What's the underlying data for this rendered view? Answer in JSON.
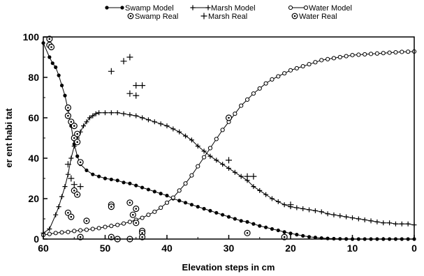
{
  "chart_data": {
    "type": "line",
    "title": "",
    "xlabel": "Elevation steps in cm",
    "ylabel": "er ent habi tat",
    "xlim": [
      60,
      0
    ],
    "ylim": [
      0,
      100
    ],
    "xticks": [
      "60",
      "50",
      "40",
      "30",
      "20",
      "10",
      "0"
    ],
    "yticks": [
      "0",
      "20",
      "40",
      "60",
      "80",
      "100"
    ],
    "grid": false,
    "legend_position": "top",
    "series": [
      {
        "name": "Swamp Model",
        "kind": "model",
        "marker": "filled-circle",
        "x": [
          60,
          59,
          58.5,
          58,
          57.5,
          57,
          56.5,
          56,
          55.5,
          55,
          54.5,
          54,
          53,
          52,
          51,
          50,
          49,
          48,
          47,
          46,
          45,
          44,
          43,
          42,
          41,
          40,
          39,
          38,
          37,
          36,
          35,
          34,
          33,
          32,
          31,
          30,
          29,
          28,
          27,
          26,
          25,
          24,
          23,
          22,
          21,
          20,
          19,
          18,
          17,
          16,
          15,
          14,
          13,
          12,
          11,
          10,
          9,
          8,
          7,
          6,
          5,
          4,
          3,
          2,
          1,
          0
        ],
        "y": [
          97,
          90,
          87,
          85,
          81,
          76,
          71,
          64,
          56,
          47,
          41,
          37,
          34,
          32,
          31,
          30,
          29.5,
          29,
          28,
          27.5,
          26.5,
          25.5,
          24.5,
          23.5,
          22.5,
          21.5,
          20,
          19,
          18,
          17,
          16,
          15,
          14,
          13,
          12,
          11,
          10,
          9,
          8.5,
          7.5,
          6.5,
          5.8,
          5,
          4.3,
          3.5,
          2.8,
          2.2,
          1.6,
          1.1,
          0.8,
          0.5,
          0.3,
          0.2,
          0.1,
          0.05,
          0,
          0,
          0,
          0,
          0,
          0,
          0,
          0,
          0,
          0,
          0
        ]
      },
      {
        "name": "Marsh Model",
        "kind": "model",
        "marker": "plus",
        "x": [
          60,
          59,
          58,
          57.5,
          57,
          56.5,
          56,
          55.5,
          55,
          54.5,
          54,
          53.5,
          53,
          52.5,
          52,
          51.5,
          51,
          50,
          49,
          48,
          47,
          46,
          45,
          44,
          43,
          42,
          41,
          40,
          39,
          38,
          37,
          36,
          35,
          34,
          33,
          32,
          31,
          30,
          29,
          28,
          27,
          26,
          25,
          24,
          23,
          22,
          21,
          20,
          19,
          18,
          17,
          16,
          15,
          14,
          13,
          12,
          11,
          10,
          9,
          8,
          7,
          6,
          5,
          4,
          3,
          2,
          1,
          0
        ],
        "y": [
          3,
          5,
          12,
          16,
          21,
          26,
          32,
          40,
          46,
          50,
          53,
          56,
          58,
          60,
          61,
          62,
          62.5,
          62.5,
          62.5,
          62.5,
          62,
          61.5,
          61,
          60,
          59,
          58,
          57,
          56,
          54.5,
          53,
          51,
          49,
          46,
          43.5,
          41,
          39,
          37,
          35,
          33,
          31,
          29,
          26,
          24,
          22,
          20,
          18.5,
          17,
          16,
          15.5,
          15,
          14.5,
          14,
          13.5,
          12.5,
          12,
          11.5,
          11,
          10.5,
          10,
          9.5,
          9,
          8.5,
          8,
          8,
          7.5,
          7.5,
          7.5,
          7
        ]
      },
      {
        "name": "Water Model",
        "kind": "model",
        "marker": "open-circle",
        "x": [
          60,
          59,
          58,
          57,
          56,
          55,
          54,
          53,
          52,
          51,
          50,
          49,
          48,
          47,
          46,
          45,
          44,
          43,
          42,
          41,
          40,
          39,
          38,
          37,
          36,
          35,
          34,
          33,
          32,
          31,
          30,
          29,
          28,
          27,
          26,
          25,
          24,
          23,
          22,
          21,
          20,
          19,
          18,
          17,
          16,
          15,
          14,
          13,
          12,
          11,
          10,
          9,
          8,
          7,
          6,
          5,
          4,
          3,
          2,
          1,
          0
        ],
        "y": [
          2,
          2.5,
          3,
          3.3,
          3.5,
          4,
          4.3,
          4.6,
          5,
          5.4,
          6,
          6.5,
          7,
          7.7,
          8.5,
          9.5,
          10.5,
          12,
          13.5,
          15.5,
          18,
          20.5,
          24,
          27.5,
          31.5,
          36,
          40.5,
          45,
          49.5,
          54,
          58,
          62,
          66,
          69,
          72,
          74.5,
          77,
          79,
          80.5,
          82,
          83.5,
          84.5,
          85.5,
          86.5,
          87.5,
          88.5,
          89,
          89.5,
          90,
          90.5,
          91,
          91.2,
          91.4,
          91.6,
          91.8,
          92,
          92.2,
          92.4,
          92.6,
          92.7,
          92.8
        ]
      },
      {
        "name": "Swamp Real",
        "kind": "real",
        "marker": "circle-dot",
        "x": [
          59,
          59,
          58.7,
          56,
          56,
          55.5,
          55,
          55,
          54.5,
          54.5,
          54,
          49,
          49,
          46,
          45,
          44,
          44,
          27
        ],
        "y": [
          99,
          96,
          95,
          65,
          61,
          58,
          56,
          50,
          52,
          48,
          38,
          17,
          16,
          18,
          8,
          4,
          3,
          3
        ]
      },
      {
        "name": "Marsh Real",
        "kind": "real",
        "marker": "plus",
        "x": [
          56,
          55.5,
          55,
          54,
          49,
          47,
          46,
          46,
          45,
          45,
          44,
          30,
          27,
          26,
          20
        ],
        "y": [
          37,
          30,
          27,
          26,
          83,
          88,
          90,
          72,
          76,
          71,
          76,
          39,
          31,
          31,
          17
        ]
      },
      {
        "name": "Water Real",
        "kind": "real",
        "marker": "circle-dot",
        "x": [
          56,
          55.5,
          55,
          54.5,
          54,
          53,
          49,
          48,
          46,
          45.5,
          45,
          44,
          30,
          21
        ],
        "y": [
          13,
          11,
          24,
          22,
          1,
          9,
          1,
          0,
          0,
          12,
          15,
          1,
          60,
          1
        ]
      }
    ]
  }
}
